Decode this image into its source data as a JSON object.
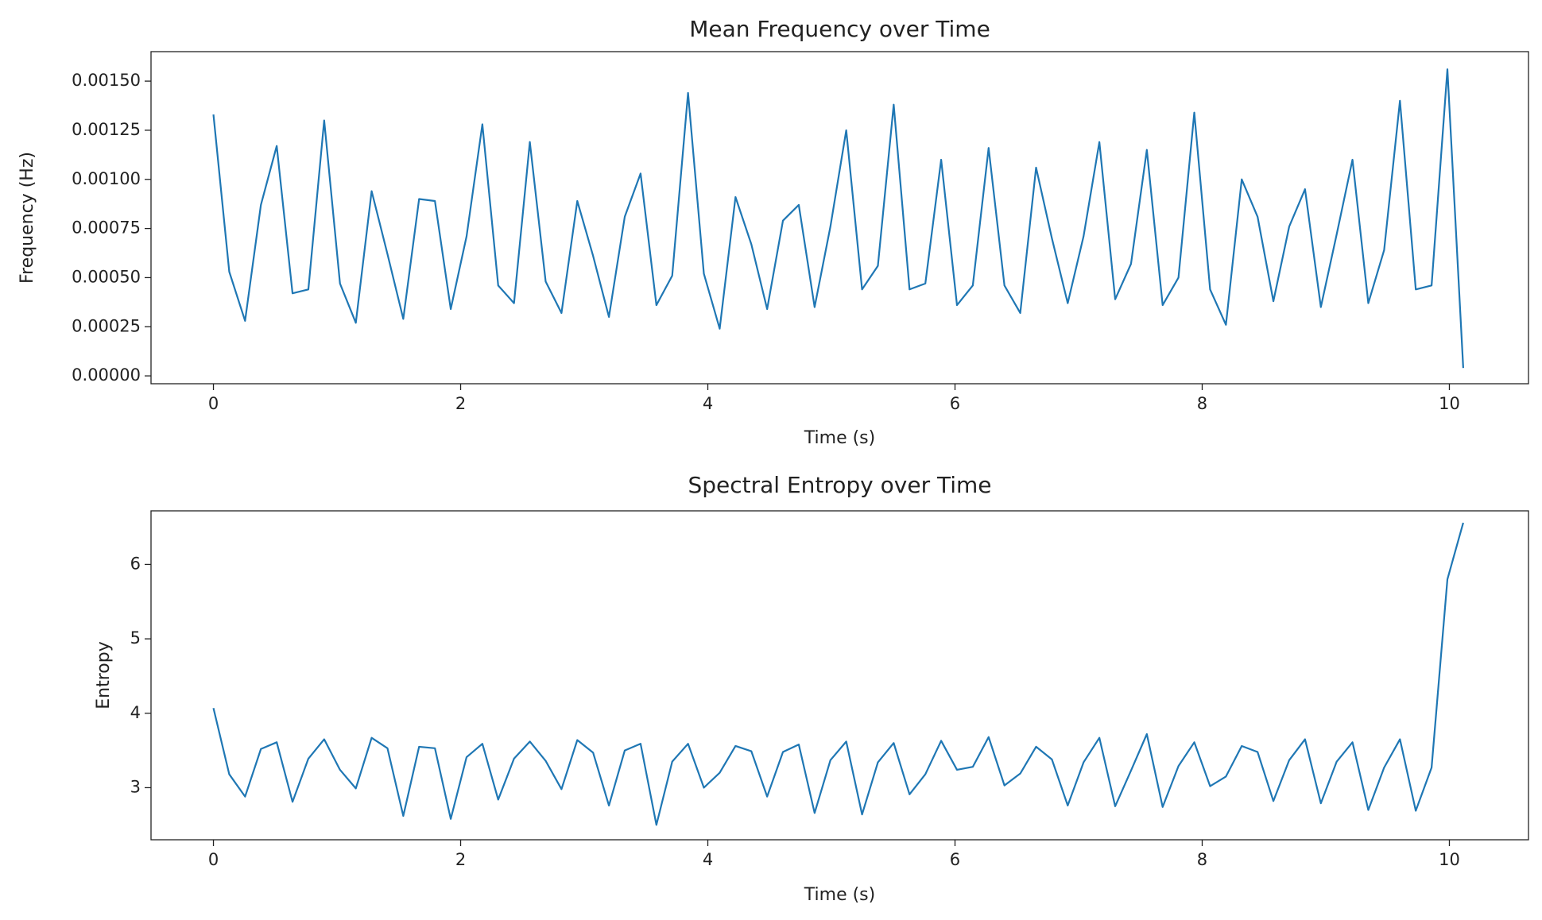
{
  "chart_data": [
    {
      "type": "line",
      "title": "Mean Frequency over Time",
      "x_label": "Time (s)",
      "y_label": "Frequency (Hz)",
      "color": "#1f77b4",
      "x": [
        0,
        0.128,
        0.256,
        0.384,
        0.512,
        0.64,
        0.768,
        0.896,
        1.024,
        1.152,
        1.28,
        1.408,
        1.536,
        1.664,
        1.792,
        1.92,
        2.048,
        2.176,
        2.304,
        2.432,
        2.56,
        2.688,
        2.816,
        2.944,
        3.072,
        3.2,
        3.328,
        3.456,
        3.584,
        3.712,
        3.84,
        3.968,
        4.096,
        4.224,
        4.352,
        4.48,
        4.608,
        4.736,
        4.864,
        4.992,
        5.12,
        5.248,
        5.376,
        5.504,
        5.632,
        5.76,
        5.888,
        6.016,
        6.144,
        6.272,
        6.4,
        6.528,
        6.656,
        6.784,
        6.912,
        7.04,
        7.168,
        7.296,
        7.424,
        7.552,
        7.68,
        7.808,
        7.936,
        8.064,
        8.192,
        8.32,
        8.448,
        8.576,
        8.704,
        8.832,
        8.96,
        9.088,
        9.216,
        9.344,
        9.472,
        9.6,
        9.728,
        9.856,
        9.984,
        10.112
      ],
      "values": [
        0.00133,
        0.00053,
        0.00028,
        0.00087,
        0.00117,
        0.00042,
        0.00044,
        0.0013,
        0.00047,
        0.00027,
        0.00094,
        0.00062,
        0.00029,
        0.0009,
        0.00089,
        0.00034,
        0.00071,
        0.00128,
        0.00046,
        0.00037,
        0.00119,
        0.00048,
        0.00032,
        0.00089,
        0.00061,
        0.0003,
        0.00081,
        0.00103,
        0.00036,
        0.00051,
        0.00144,
        0.00052,
        0.00024,
        0.00091,
        0.00067,
        0.00034,
        0.00079,
        0.00087,
        0.00035,
        0.00076,
        0.00125,
        0.00044,
        0.00056,
        0.00138,
        0.00044,
        0.00047,
        0.0011,
        0.00036,
        0.00046,
        0.00116,
        0.00046,
        0.00032,
        0.00106,
        0.0007,
        0.00037,
        0.00071,
        0.00119,
        0.00039,
        0.00057,
        0.00115,
        0.00036,
        0.0005,
        0.00134,
        0.00044,
        0.00026,
        0.001,
        0.00081,
        0.00038,
        0.00076,
        0.00095,
        0.00035,
        0.00072,
        0.0011,
        0.00037,
        0.00064,
        0.0014,
        0.00044,
        0.00046,
        0.00156,
        4e-05
      ],
      "xlim": [
        -0.505,
        10.64
      ],
      "xticks": [
        0,
        2,
        4,
        6,
        8,
        10
      ],
      "ylim": [
        -4e-05,
        0.00165
      ],
      "yticks": [
        {
          "value": 0,
          "label": "0.00000"
        },
        {
          "value": 0.00025,
          "label": "0.00025"
        },
        {
          "value": 0.0005,
          "label": "0.00050"
        },
        {
          "value": 0.00075,
          "label": "0.00075"
        },
        {
          "value": 0.001,
          "label": "0.00100"
        },
        {
          "value": 0.00125,
          "label": "0.00125"
        },
        {
          "value": 0.0015,
          "label": "0.00150"
        }
      ]
    },
    {
      "type": "line",
      "title": "Spectral Entropy over Time",
      "x_label": "Time (s)",
      "y_label": "Entropy",
      "color": "#1f77b4",
      "x": [
        0,
        0.128,
        0.256,
        0.384,
        0.512,
        0.64,
        0.768,
        0.896,
        1.024,
        1.152,
        1.28,
        1.408,
        1.536,
        1.664,
        1.792,
        1.92,
        2.048,
        2.176,
        2.304,
        2.432,
        2.56,
        2.688,
        2.816,
        2.944,
        3.072,
        3.2,
        3.328,
        3.456,
        3.584,
        3.712,
        3.84,
        3.968,
        4.096,
        4.224,
        4.352,
        4.48,
        4.608,
        4.736,
        4.864,
        4.992,
        5.12,
        5.248,
        5.376,
        5.504,
        5.632,
        5.76,
        5.888,
        6.016,
        6.144,
        6.272,
        6.4,
        6.528,
        6.656,
        6.784,
        6.912,
        7.04,
        7.168,
        7.296,
        7.424,
        7.552,
        7.68,
        7.808,
        7.936,
        8.064,
        8.192,
        8.32,
        8.448,
        8.576,
        8.704,
        8.832,
        8.96,
        9.088,
        9.216,
        9.344,
        9.472,
        9.6,
        9.728,
        9.856,
        9.984,
        10.112
      ],
      "values": [
        4.07,
        3.18,
        2.88,
        3.52,
        3.61,
        2.81,
        3.39,
        3.65,
        3.24,
        2.99,
        3.67,
        3.53,
        2.62,
        3.55,
        3.53,
        2.58,
        3.41,
        3.59,
        2.84,
        3.39,
        3.62,
        3.36,
        2.98,
        3.64,
        3.47,
        2.76,
        3.5,
        3.59,
        2.5,
        3.35,
        3.59,
        3.0,
        3.2,
        3.56,
        3.49,
        2.88,
        3.48,
        3.58,
        2.66,
        3.37,
        3.62,
        2.64,
        3.34,
        3.6,
        2.91,
        3.18,
        3.63,
        3.24,
        3.28,
        3.68,
        3.03,
        3.19,
        3.55,
        3.38,
        2.76,
        3.34,
        3.67,
        2.75,
        3.23,
        3.72,
        2.74,
        3.29,
        3.61,
        3.02,
        3.15,
        3.56,
        3.48,
        2.82,
        3.37,
        3.65,
        2.79,
        3.35,
        3.61,
        2.7,
        3.27,
        3.65,
        2.69,
        3.27,
        5.8,
        6.56
      ],
      "xlim": [
        -0.505,
        10.64
      ],
      "xticks": [
        0,
        2,
        4,
        6,
        8,
        10
      ],
      "ylim": [
        2.3,
        6.72
      ],
      "yticks": [
        3,
        4,
        5,
        6
      ]
    }
  ]
}
